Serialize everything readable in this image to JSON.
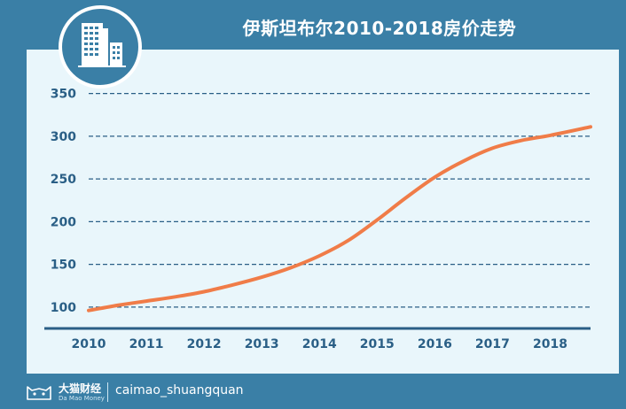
{
  "header": {
    "title": "伊斯坦布尔2010-2018房价走势"
  },
  "footer": {
    "brand_cn": "大猫财经",
    "brand_en": "Da Mao Money",
    "handle": "caimao_shuangquan"
  },
  "colors": {
    "frame": "#3a7fa6",
    "panel": "#e9f6fb",
    "line": "#f07c48",
    "grid": "#2a5f86",
    "tick_text": "#2a5f86"
  },
  "icons": {
    "logo": "building-icon",
    "brand": "cat-icon"
  },
  "chart_data": {
    "type": "line",
    "title": "伊斯坦布尔2010-2018房价走势",
    "xlabel": "",
    "ylabel": "",
    "x_ticks": [
      "2010",
      "2011",
      "2012",
      "2013",
      "2014",
      "2015",
      "2016",
      "2017",
      "2018"
    ],
    "y_ticks": [
      100,
      150,
      200,
      250,
      300,
      350
    ],
    "xlim": [
      2010,
      2018.7
    ],
    "ylim": [
      75,
      360
    ],
    "grid": true,
    "legend": "none",
    "series": [
      {
        "name": "房价",
        "x": [
          2010,
          2010.5,
          2011,
          2011.5,
          2012,
          2012.5,
          2013,
          2013.5,
          2014,
          2014.5,
          2015,
          2015.5,
          2016,
          2016.5,
          2017,
          2017.5,
          2018,
          2018.7
        ],
        "y": [
          96,
          102,
          107,
          112,
          118,
          126,
          135,
          146,
          160,
          178,
          202,
          228,
          252,
          271,
          286,
          295,
          301,
          311
        ]
      }
    ]
  }
}
